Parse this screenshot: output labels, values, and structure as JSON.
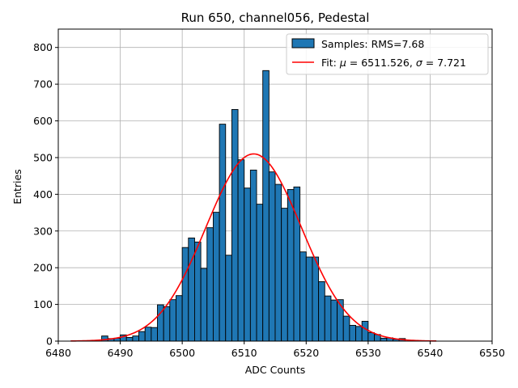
{
  "chart_data": {
    "type": "bar",
    "title": "Run 650, channel056, Pedestal",
    "xlabel": "ADC Counts",
    "ylabel": "Entries",
    "xlim": [
      6480,
      6550
    ],
    "ylim": [
      0,
      850
    ],
    "xticks": [
      6480,
      6490,
      6500,
      6510,
      6520,
      6530,
      6540,
      6550
    ],
    "yticks": [
      0,
      100,
      200,
      300,
      400,
      500,
      600,
      700,
      800
    ],
    "grid": true,
    "legend_position": "top-right",
    "bin_width": 1,
    "colors": {
      "bars": "#1f77b4",
      "bar_edge": "#000000",
      "fit": "#ff0000",
      "grid": "#b0b0b0"
    },
    "series": [
      {
        "name": "Samples: RMS=7.68",
        "kind": "histogram",
        "bin_start": [
          6487,
          6488,
          6489,
          6490,
          6491,
          6492,
          6493,
          6494,
          6495,
          6496,
          6497,
          6498,
          6499,
          6500,
          6501,
          6502,
          6503,
          6504,
          6505,
          6506,
          6507,
          6508,
          6509,
          6510,
          6511,
          6512,
          6513,
          6514,
          6515,
          6516,
          6517,
          6518,
          6519,
          6520,
          6521,
          6522,
          6523,
          6524,
          6525,
          6526,
          6527,
          6528,
          6529,
          6530,
          6531,
          6532,
          6533,
          6534,
          6535
        ],
        "values": [
          14,
          7,
          8,
          17,
          10,
          14,
          26,
          38,
          37,
          99,
          94,
          113,
          124,
          255,
          281,
          270,
          198,
          309,
          351,
          591,
          234,
          631,
          494,
          417,
          466,
          373,
          737,
          461,
          427,
          362,
          413,
          420,
          243,
          229,
          229,
          162,
          123,
          112,
          113,
          68,
          43,
          40,
          54,
          23,
          18,
          8,
          9,
          5,
          7
        ]
      },
      {
        "name": "Fit: μ = 6511.526, σ = 7.721",
        "kind": "gaussian",
        "mu": 6511.526,
        "sigma": 7.721,
        "amplitude": 510,
        "x_range": [
          6482,
          6541
        ]
      }
    ]
  },
  "legend": {
    "entries": [
      {
        "label_prefix": "Samples: RMS=7.68"
      },
      {
        "label_prefix": "Fit: ",
        "mu_symbol": "μ",
        "mu_text": " = 6511.526, ",
        "sigma_symbol": "σ",
        "sigma_text": " = 7.721"
      }
    ]
  }
}
